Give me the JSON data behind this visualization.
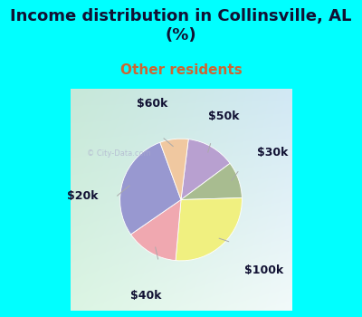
{
  "title": "Income distribution in Collinsville, AL\n(%)",
  "subtitle": "Other residents",
  "background_color": "#00FFFF",
  "chart_bg_color_topleft": "#c8e8d8",
  "chart_bg_color_topright": "#d0e8f0",
  "chart_bg_color_bottomleft": "#d8f0e0",
  "chart_bg_color_bottomright": "#e8f4f8",
  "labels": [
    "$50k",
    "$30k",
    "$100k",
    "$40k",
    "$20k",
    "$60k"
  ],
  "sizes": [
    12,
    9,
    25,
    13,
    27,
    7
  ],
  "colors": [
    "#b8a0d0",
    "#a8bc90",
    "#f0f080",
    "#f0a8b0",
    "#9898d0",
    "#f0c8a0"
  ],
  "title_fontsize": 13,
  "subtitle_fontsize": 11,
  "subtitle_color": "#cc6633",
  "title_color": "#111133",
  "label_fontsize": 9,
  "watermark": "City-Data.com",
  "startangle": 83
}
